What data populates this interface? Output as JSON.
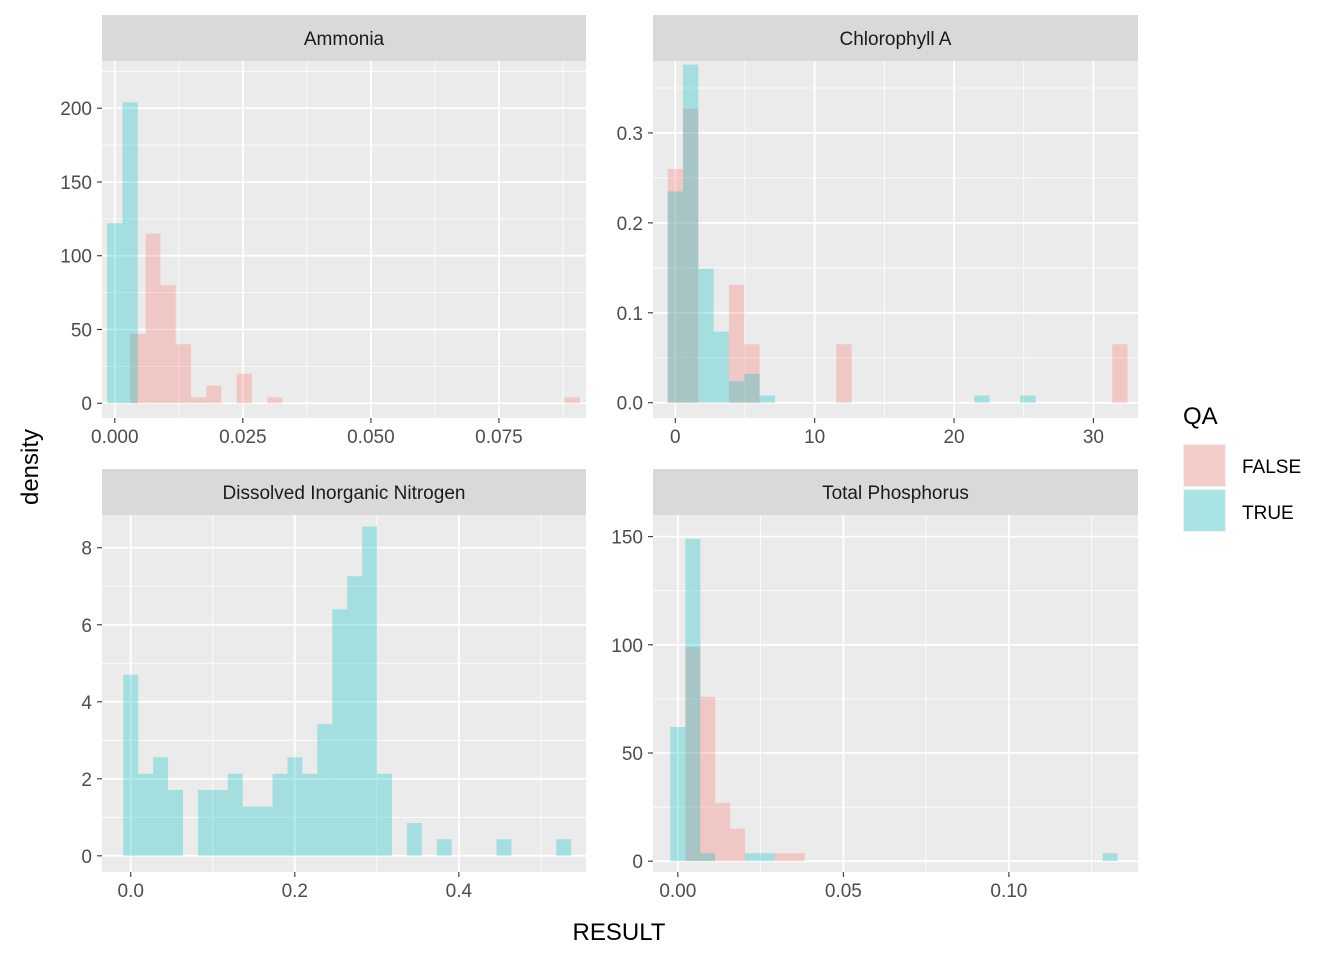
{
  "chart_data": {
    "type": "bar",
    "facets": [
      {
        "name": "Ammonia",
        "xlim": [
          -0.0025,
          0.092
        ],
        "ylim": [
          -10,
          232
        ],
        "xticks": [
          0.0,
          0.025,
          0.05,
          0.075
        ],
        "xtick_labels": [
          "0.000",
          "0.025",
          "0.050",
          "0.075"
        ],
        "yticks": [
          0,
          50,
          100,
          150,
          200
        ],
        "ytick_labels": [
          "0",
          "50",
          "100",
          "150",
          "200"
        ],
        "series": [
          {
            "name": "FALSE",
            "bins": [
              {
                "x0": 0.003,
                "x1": 0.006,
                "density": 47
              },
              {
                "x0": 0.006,
                "x1": 0.0089,
                "density": 115
              },
              {
                "x0": 0.0089,
                "x1": 0.0119,
                "density": 80
              },
              {
                "x0": 0.0119,
                "x1": 0.0149,
                "density": 40
              },
              {
                "x0": 0.0149,
                "x1": 0.0179,
                "density": 4
              },
              {
                "x0": 0.0179,
                "x1": 0.0208,
                "density": 12
              },
              {
                "x0": 0.0238,
                "x1": 0.0268,
                "density": 20
              },
              {
                "x0": 0.0298,
                "x1": 0.0327,
                "density": 4
              },
              {
                "x0": 0.0878,
                "x1": 0.0908,
                "density": 4
              }
            ]
          },
          {
            "name": "TRUE",
            "bins": [
              {
                "x0": -0.0015,
                "x1": 0.0015,
                "density": 122
              },
              {
                "x0": 0.0015,
                "x1": 0.0045,
                "density": 204
              }
            ]
          }
        ]
      },
      {
        "name": "Chlorophyll A",
        "xlim": [
          -1.6,
          33.2
        ],
        "ylim": [
          -0.017,
          0.38
        ],
        "xticks": [
          0,
          10,
          20,
          30
        ],
        "xtick_labels": [
          "0",
          "10",
          "20",
          "30"
        ],
        "yticks": [
          0.0,
          0.1,
          0.2,
          0.3
        ],
        "ytick_labels": [
          "0.0",
          "0.1",
          "0.2",
          "0.3"
        ],
        "series": [
          {
            "name": "FALSE",
            "bins": [
              {
                "x0": -0.55,
                "x1": 0.55,
                "density": 0.26
              },
              {
                "x0": 0.55,
                "x1": 1.65,
                "density": 0.327
              },
              {
                "x0": 3.85,
                "x1": 4.95,
                "density": 0.131
              },
              {
                "x0": 4.95,
                "x1": 6.05,
                "density": 0.065
              },
              {
                "x0": 11.55,
                "x1": 12.65,
                "density": 0.065
              },
              {
                "x0": 31.35,
                "x1": 32.45,
                "density": 0.065
              }
            ]
          },
          {
            "name": "TRUE",
            "bins": [
              {
                "x0": -0.55,
                "x1": 0.55,
                "density": 0.235
              },
              {
                "x0": 0.55,
                "x1": 1.65,
                "density": 0.376
              },
              {
                "x0": 1.65,
                "x1": 2.75,
                "density": 0.149
              },
              {
                "x0": 2.75,
                "x1": 3.85,
                "density": 0.079
              },
              {
                "x0": 3.85,
                "x1": 4.95,
                "density": 0.024
              },
              {
                "x0": 4.95,
                "x1": 6.05,
                "density": 0.032
              },
              {
                "x0": 6.05,
                "x1": 7.15,
                "density": 0.008
              },
              {
                "x0": 21.45,
                "x1": 22.55,
                "density": 0.008
              },
              {
                "x0": 24.75,
                "x1": 25.85,
                "density": 0.008
              }
            ]
          }
        ]
      },
      {
        "name": "Dissolved Inorganic Nitrogen",
        "xlim": [
          -0.035,
          0.555
        ],
        "ylim": [
          -0.42,
          8.85
        ],
        "xticks": [
          0.0,
          0.2,
          0.4
        ],
        "xtick_labels": [
          "0.0",
          "0.2",
          "0.4"
        ],
        "yticks": [
          0,
          2,
          4,
          6,
          8
        ],
        "ytick_labels": [
          "0",
          "2",
          "4",
          "6",
          "8"
        ],
        "series": [
          {
            "name": "TRUE",
            "bins": [
              {
                "x0": -0.0091,
                "x1": 0.0091,
                "density": 4.7
              },
              {
                "x0": 0.0091,
                "x1": 0.0273,
                "density": 2.13
              },
              {
                "x0": 0.0273,
                "x1": 0.0455,
                "density": 2.56
              },
              {
                "x0": 0.0455,
                "x1": 0.0637,
                "density": 1.71
              },
              {
                "x0": 0.0819,
                "x1": 0.1001,
                "density": 1.71
              },
              {
                "x0": 0.1001,
                "x1": 0.1183,
                "density": 1.71
              },
              {
                "x0": 0.1183,
                "x1": 0.1365,
                "density": 2.13
              },
              {
                "x0": 0.1365,
                "x1": 0.1547,
                "density": 1.28
              },
              {
                "x0": 0.1547,
                "x1": 0.1729,
                "density": 1.28
              },
              {
                "x0": 0.1729,
                "x1": 0.1911,
                "density": 2.13
              },
              {
                "x0": 0.1911,
                "x1": 0.2093,
                "density": 2.56
              },
              {
                "x0": 0.2093,
                "x1": 0.2275,
                "density": 2.13
              },
              {
                "x0": 0.2275,
                "x1": 0.2457,
                "density": 3.42
              },
              {
                "x0": 0.2457,
                "x1": 0.2639,
                "density": 6.4
              },
              {
                "x0": 0.2639,
                "x1": 0.2821,
                "density": 7.26
              },
              {
                "x0": 0.2821,
                "x1": 0.3003,
                "density": 8.55
              },
              {
                "x0": 0.3003,
                "x1": 0.3185,
                "density": 2.13
              },
              {
                "x0": 0.3367,
                "x1": 0.3549,
                "density": 0.85
              },
              {
                "x0": 0.3731,
                "x1": 0.3913,
                "density": 0.43
              },
              {
                "x0": 0.4459,
                "x1": 0.4641,
                "density": 0.43
              },
              {
                "x0": 0.5187,
                "x1": 0.5369,
                "density": 0.43
              }
            ]
          }
        ]
      },
      {
        "name": "Total Phosphorus",
        "xlim": [
          -0.0075,
          0.139
        ],
        "ylim": [
          -5,
          160
        ],
        "xticks": [
          0.0,
          0.05,
          0.1
        ],
        "xtick_labels": [
          "0.00",
          "0.05",
          "0.10"
        ],
        "yticks": [
          0,
          50,
          100,
          150
        ],
        "ytick_labels": [
          "0",
          "50",
          "100",
          "150"
        ],
        "series": [
          {
            "name": "FALSE",
            "bins": [
              {
                "x0": 0.0023,
                "x1": 0.0068,
                "density": 99
              },
              {
                "x0": 0.0068,
                "x1": 0.0113,
                "density": 76
              },
              {
                "x0": 0.0113,
                "x1": 0.0158,
                "density": 27
              },
              {
                "x0": 0.0158,
                "x1": 0.0203,
                "density": 15
              },
              {
                "x0": 0.0293,
                "x1": 0.0383,
                "density": 3.7
              }
            ]
          },
          {
            "name": "TRUE",
            "bins": [
              {
                "x0": -0.0023,
                "x1": 0.0023,
                "density": 62
              },
              {
                "x0": 0.0023,
                "x1": 0.0068,
                "density": 149
              },
              {
                "x0": 0.0068,
                "x1": 0.0113,
                "density": 3.7
              },
              {
                "x0": 0.0203,
                "x1": 0.0293,
                "density": 3.7
              },
              {
                "x0": 0.1283,
                "x1": 0.1328,
                "density": 3.7
              }
            ]
          }
        ]
      }
    ],
    "xlabel": "RESULT",
    "ylabel": "density",
    "legend": {
      "title": "QA",
      "position": "right",
      "entries": [
        {
          "label": "FALSE",
          "color": "#F8766D"
        },
        {
          "label": "TRUE",
          "color": "#00BFC4"
        }
      ]
    },
    "fill_alpha": 0.3,
    "grid": true
  },
  "colors": {
    "panel_bg": "#EBEBEB",
    "strip_bg": "#D9D9D9",
    "grid": "#FFFFFF",
    "false_fill": "#F8766D",
    "true_fill": "#00BFC4"
  }
}
